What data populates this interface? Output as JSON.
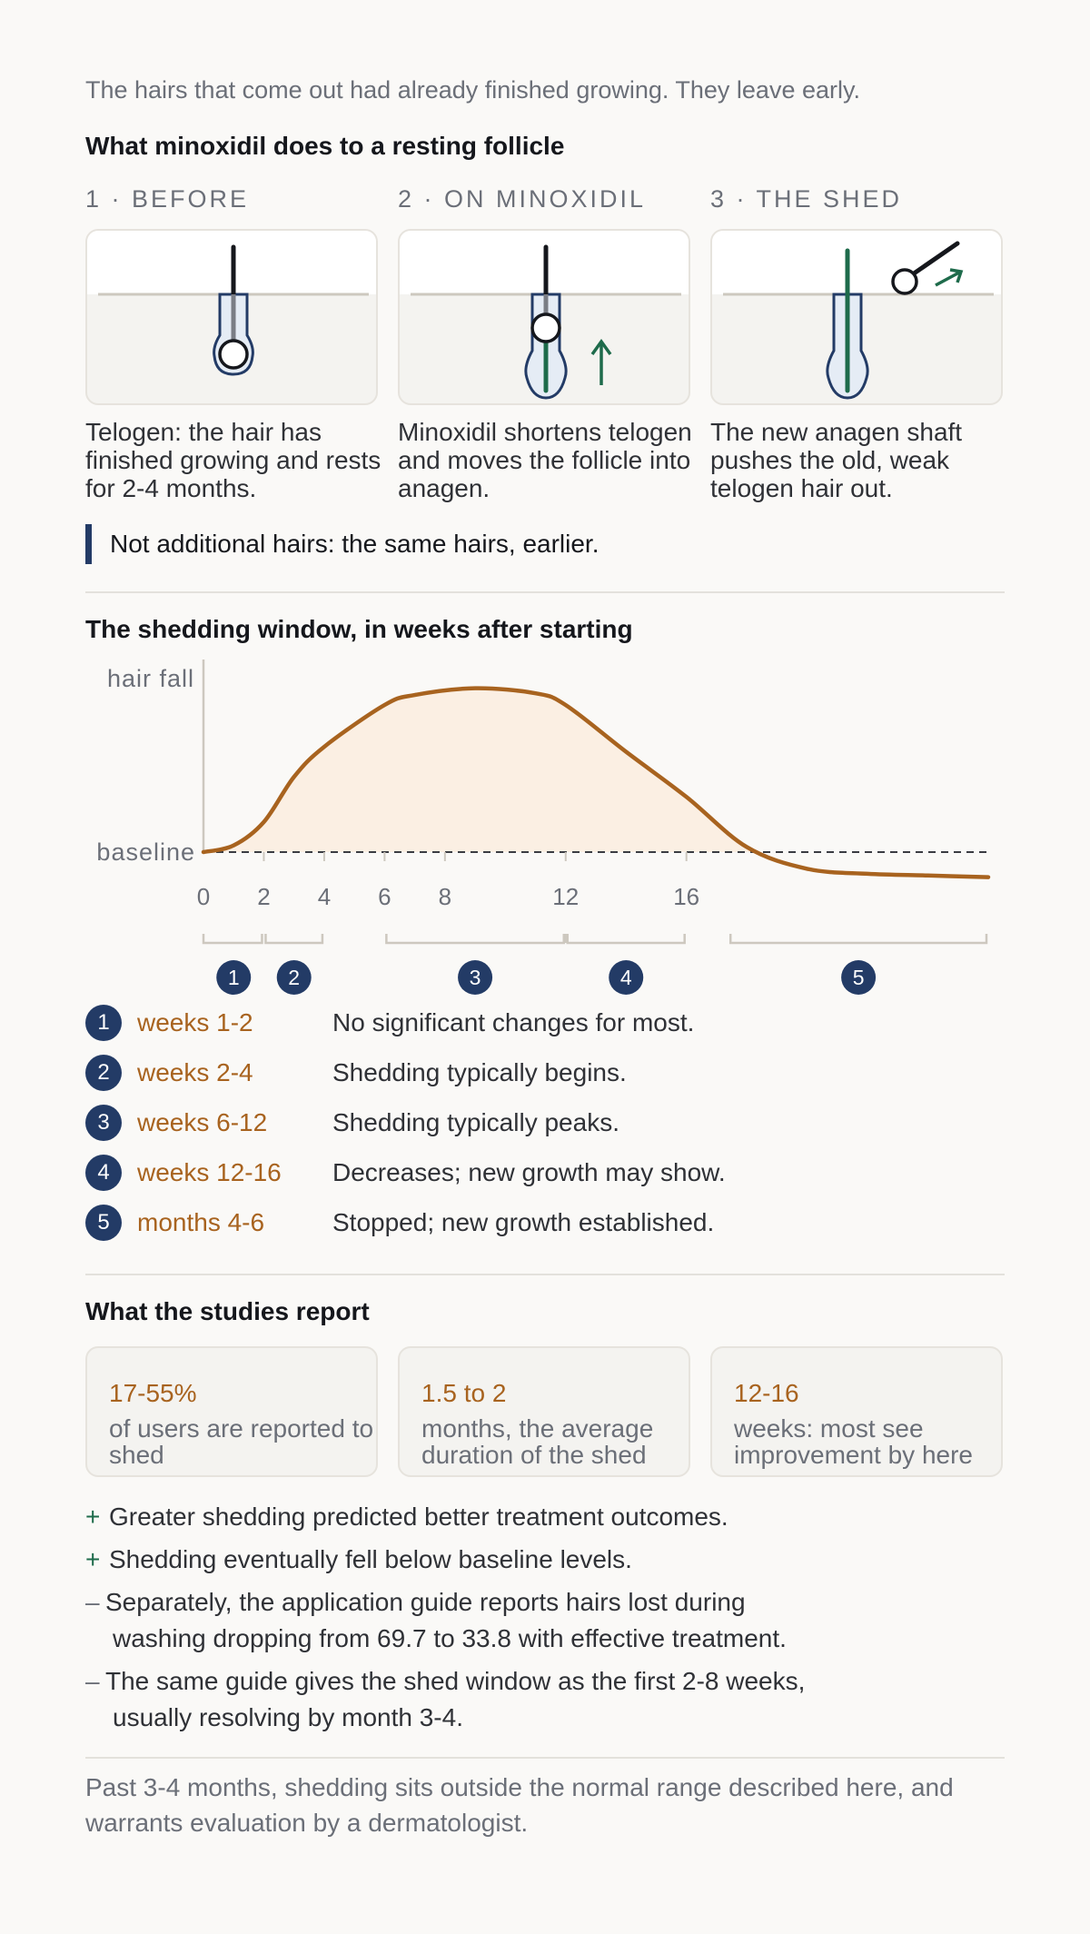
{
  "intro": "The hairs that come out had already finished growing. They leave early.",
  "follicle_section": {
    "title": "What minoxidil does to a resting follicle",
    "steps": [
      {
        "label": "1 · BEFORE",
        "caption": "Telogen: the hair has finished growing and rests for 2-4 months."
      },
      {
        "label": "2 · ON MINOXIDIL",
        "caption": "Minoxidil shortens telogen and moves the follicle into anagen."
      },
      {
        "label": "3 · THE SHED",
        "caption": "The new anagen shaft pushes the old, weak telogen hair out."
      }
    ],
    "callout": "Not additional hairs: the same hairs, earlier."
  },
  "window_section": {
    "title": "The shedding window, in weeks after starting"
  },
  "chart_data": {
    "type": "area",
    "title": "The shedding window, in weeks after starting",
    "ylabel": "hair fall",
    "baseline_label": "baseline",
    "x_ticks": [
      0,
      2,
      4,
      6,
      8,
      12,
      16
    ],
    "xlim": [
      0,
      26
    ],
    "series": [
      {
        "x": [
          0,
          1,
          2,
          3,
          4,
          6,
          7,
          9,
          11,
          12,
          14,
          16,
          18,
          20,
          22,
          24,
          26
        ],
        "y": [
          0,
          0.04,
          0.18,
          0.45,
          0.63,
          0.88,
          0.94,
          0.98,
          0.95,
          0.88,
          0.6,
          0.33,
          0.03,
          -0.1,
          -0.13,
          -0.14,
          -0.15
        ]
      }
    ],
    "phases": [
      {
        "num": "1",
        "start": 0,
        "end": 2
      },
      {
        "num": "2",
        "start": 2,
        "end": 4
      },
      {
        "num": "3",
        "start": 6,
        "end": 12
      },
      {
        "num": "4",
        "start": 12,
        "end": 16
      },
      {
        "num": "5",
        "start": 17.4,
        "end": 26
      }
    ]
  },
  "timeline": [
    {
      "num": "1",
      "when": "weeks 1-2",
      "desc": "No significant changes for most."
    },
    {
      "num": "2",
      "when": "weeks 2-4",
      "desc": "Shedding typically begins."
    },
    {
      "num": "3",
      "when": "weeks 6-12",
      "desc": "Shedding typically peaks."
    },
    {
      "num": "4",
      "when": "weeks 12-16",
      "desc": "Decreases; new growth may show."
    },
    {
      "num": "5",
      "when": "months 4-6",
      "desc": "Stopped; new growth established."
    }
  ],
  "studies": {
    "title": "What the studies report",
    "stats": [
      {
        "value": "17-55%",
        "desc": "of users are reported to shed"
      },
      {
        "value": "1.5 to 2",
        "desc": "months, the average duration of the shed"
      },
      {
        "value": "12-16",
        "desc": "weeks: most see improvement by here"
      }
    ],
    "bullets": [
      {
        "mark": "+",
        "text": "Greater shedding predicted better treatment outcomes.",
        "cont": ""
      },
      {
        "mark": "+",
        "text": "Shedding eventually fell below baseline levels.",
        "cont": ""
      },
      {
        "mark": "–",
        "text": "Separately, the application guide reports hairs lost during",
        "cont": "washing dropping from 69.7 to 33.8 with effective treatment."
      },
      {
        "mark": "–",
        "text": "The same guide gives the shed window as the first 2-8 weeks,",
        "cont": "usually resolving by month 3-4."
      }
    ]
  },
  "footer": "Past 3-4 months, shedding sits outside the normal range described here, and warrants evaluation by a dermatologist.",
  "colors": {
    "navy": "#233b66",
    "amber": "#a8631f",
    "green": "#1e6b4b",
    "fill": "#fbefe3"
  }
}
